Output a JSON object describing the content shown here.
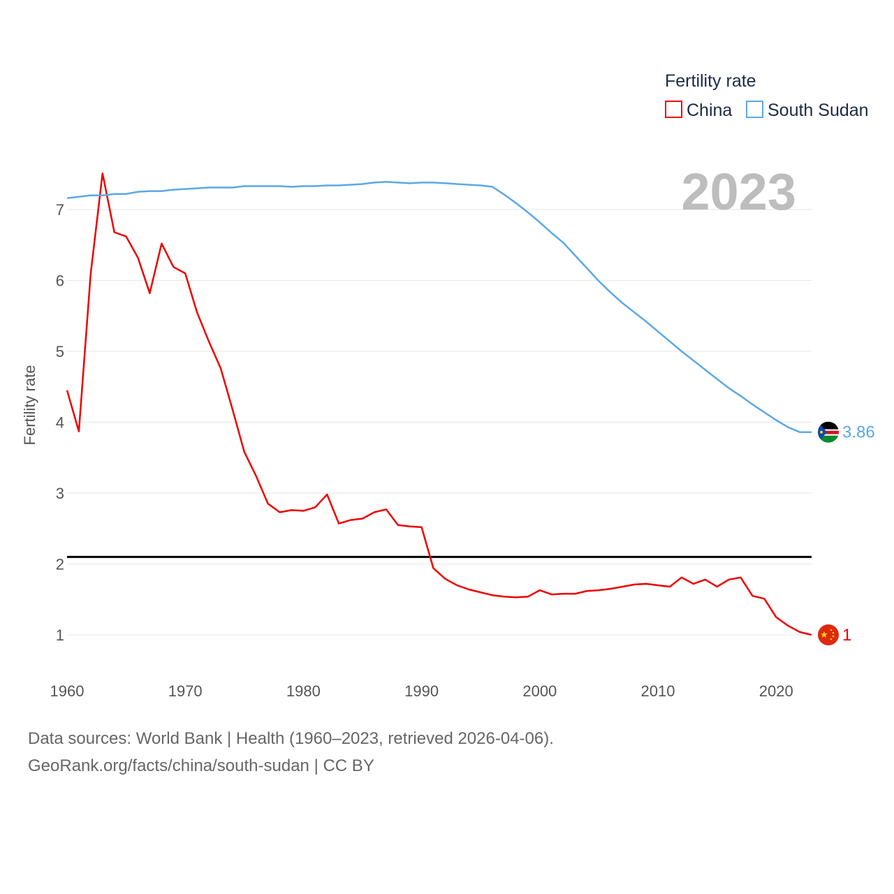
{
  "chart_data": {
    "type": "line",
    "title": "",
    "year_display": "2023",
    "xlabel": "",
    "ylabel": "Fertility rate",
    "xlim": [
      1960,
      2023
    ],
    "ylim": [
      0.5,
      7.5
    ],
    "x_ticks": [
      1960,
      1970,
      1980,
      1990,
      2000,
      2010,
      2020
    ],
    "y_ticks": [
      1,
      2,
      3,
      4,
      5,
      6,
      7
    ],
    "reference_line": {
      "y": 2.1,
      "color": "#000000"
    },
    "legend": {
      "title": "Fertility rate",
      "placement": "top-right"
    },
    "x": [
      1960,
      1961,
      1962,
      1963,
      1964,
      1965,
      1966,
      1967,
      1968,
      1969,
      1970,
      1971,
      1972,
      1973,
      1974,
      1975,
      1976,
      1977,
      1978,
      1979,
      1980,
      1981,
      1982,
      1983,
      1984,
      1985,
      1986,
      1987,
      1988,
      1989,
      1990,
      1991,
      1992,
      1993,
      1994,
      1995,
      1996,
      1997,
      1998,
      1999,
      2000,
      2001,
      2002,
      2003,
      2004,
      2005,
      2006,
      2007,
      2008,
      2009,
      2010,
      2011,
      2012,
      2013,
      2014,
      2015,
      2016,
      2017,
      2018,
      2019,
      2020,
      2021,
      2022,
      2023
    ],
    "series": [
      {
        "name": "China",
        "color": "#ee0000",
        "end_label": "1",
        "flag": "china-flag",
        "values": [
          4.45,
          3.87,
          6.09,
          7.51,
          6.68,
          6.62,
          6.32,
          5.82,
          6.52,
          6.19,
          6.1,
          5.55,
          5.14,
          4.76,
          4.18,
          3.58,
          3.24,
          2.85,
          2.73,
          2.76,
          2.75,
          2.8,
          2.98,
          2.57,
          2.62,
          2.64,
          2.73,
          2.77,
          2.55,
          2.53,
          2.52,
          1.94,
          1.79,
          1.7,
          1.64,
          1.6,
          1.56,
          1.54,
          1.53,
          1.54,
          1.63,
          1.57,
          1.58,
          1.58,
          1.62,
          1.63,
          1.65,
          1.68,
          1.71,
          1.72,
          1.7,
          1.68,
          1.81,
          1.72,
          1.78,
          1.68,
          1.78,
          1.81,
          1.55,
          1.51,
          1.25,
          1.13,
          1.04,
          1.0
        ]
      },
      {
        "name": "South Sudan",
        "color": "#5ba8e6",
        "end_label": "3.86",
        "flag": "south-sudan-flag",
        "values": [
          7.16,
          7.18,
          7.2,
          7.2,
          7.22,
          7.22,
          7.25,
          7.26,
          7.26,
          7.28,
          7.29,
          7.3,
          7.31,
          7.31,
          7.31,
          7.33,
          7.33,
          7.33,
          7.33,
          7.32,
          7.33,
          7.33,
          7.34,
          7.34,
          7.35,
          7.36,
          7.38,
          7.39,
          7.38,
          7.37,
          7.38,
          7.38,
          7.37,
          7.36,
          7.35,
          7.34,
          7.32,
          7.21,
          7.09,
          6.96,
          6.82,
          6.67,
          6.53,
          6.35,
          6.17,
          5.99,
          5.83,
          5.68,
          5.55,
          5.42,
          5.28,
          5.14,
          5.0,
          4.87,
          4.74,
          4.61,
          4.48,
          4.37,
          4.25,
          4.14,
          4.03,
          3.93,
          3.86,
          3.86
        ]
      }
    ]
  },
  "footer": {
    "line1": "Data sources: World Bank | Health (1960–2023, retrieved 2026-04-06).",
    "line2": "GeoRank.org/facts/china/south-sudan | CC BY"
  }
}
